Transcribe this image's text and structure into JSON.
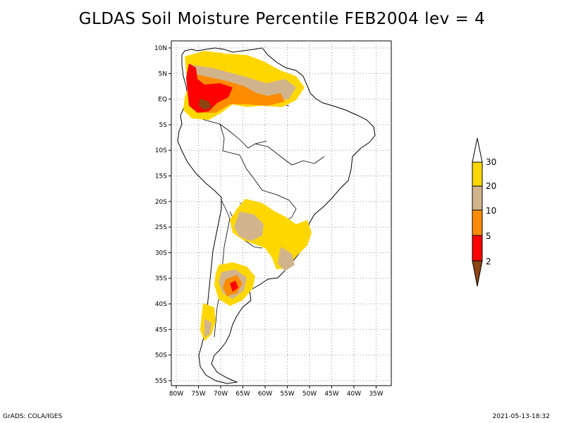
{
  "title": "GLDAS Soil Moisture Percentile FEB2004 lev = 4",
  "map": {
    "lat_labels": [
      "10N",
      "5N",
      "EQ",
      "5S",
      "10S",
      "15S",
      "20S",
      "25S",
      "30S",
      "35S",
      "40S",
      "45S",
      "50S",
      "55S"
    ],
    "lon_labels": [
      "80W",
      "75W",
      "70W",
      "65W",
      "60W",
      "55W",
      "50W",
      "45W",
      "40W",
      "35W"
    ],
    "grid": "dotted"
  },
  "legend": {
    "levels": [
      "2",
      "5",
      "10",
      "20",
      "30"
    ],
    "colors": [
      "#8b4513",
      "#ff0000",
      "#ff8c00",
      "#d2b48c",
      "#ffd700"
    ]
  },
  "footer": {
    "left": "GrADS: COLA/IGES",
    "right": "2021-05-13-18:32"
  }
}
